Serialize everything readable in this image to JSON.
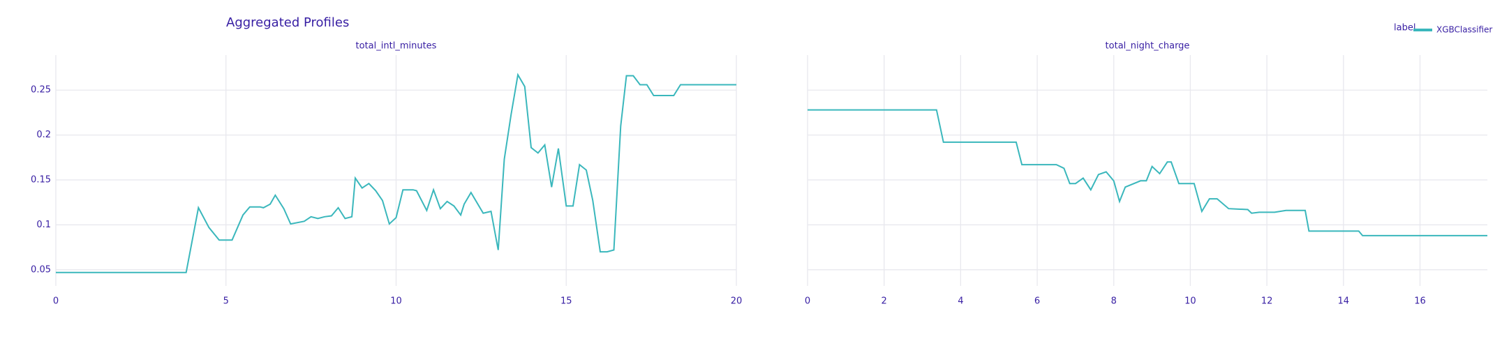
{
  "title": "Aggregated Profiles",
  "legend": {
    "title": "label"
  },
  "chart_data": [
    {
      "type": "line",
      "title": "total_intl_minutes",
      "x": [
        0,
        3.83,
        4.19,
        4.5,
        4.8,
        5.18,
        5.5,
        5.7,
        6.0,
        6.1,
        6.3,
        6.45,
        6.7,
        6.9,
        7.3,
        7.5,
        7.7,
        7.9,
        8.1,
        8.3,
        8.5,
        8.7,
        8.8,
        9.0,
        9.2,
        9.4,
        9.6,
        9.8,
        10.0,
        10.2,
        10.5,
        10.6,
        10.9,
        11.1,
        11.3,
        11.5,
        11.7,
        11.9,
        12.0,
        12.2,
        12.56,
        12.79,
        13.0,
        13.18,
        13.38,
        13.58,
        13.78,
        13.97,
        14.17,
        14.37,
        14.57,
        14.77,
        15.0,
        15.2,
        15.39,
        15.59,
        15.78,
        16.0,
        16.2,
        16.4,
        16.6,
        16.77,
        16.97,
        17.17,
        17.37,
        17.57,
        18.16,
        18.36,
        20
      ],
      "series": [
        {
          "name": "XGBClassifier",
          "color": "#3ab7bc",
          "values": [
            0.047,
            0.047,
            0.119,
            0.097,
            0.083,
            0.083,
            0.111,
            0.12,
            0.12,
            0.119,
            0.123,
            0.133,
            0.118,
            0.101,
            0.104,
            0.109,
            0.107,
            0.109,
            0.11,
            0.119,
            0.107,
            0.109,
            0.152,
            0.141,
            0.146,
            0.138,
            0.127,
            0.101,
            0.108,
            0.139,
            0.139,
            0.138,
            0.116,
            0.139,
            0.118,
            0.126,
            0.121,
            0.111,
            0.123,
            0.136,
            0.113,
            0.115,
            0.072,
            0.173,
            0.223,
            0.267,
            0.254,
            0.186,
            0.18,
            0.189,
            0.142,
            0.185,
            0.121,
            0.121,
            0.167,
            0.161,
            0.127,
            0.07,
            0.07,
            0.072,
            0.21,
            0.266,
            0.266,
            0.256,
            0.256,
            0.244,
            0.244,
            0.256,
            0.256
          ]
        }
      ],
      "xlim": [
        0,
        20
      ],
      "ylim": [
        0.032,
        0.289
      ],
      "xticks": [
        0,
        5,
        10,
        15,
        20
      ],
      "yticks": [
        0.05,
        0.1,
        0.15,
        0.2,
        0.25
      ],
      "grid": true
    },
    {
      "type": "line",
      "title": "total_night_charge",
      "x": [
        0,
        3.37,
        3.55,
        5.45,
        5.6,
        6.5,
        6.7,
        6.85,
        7.0,
        7.2,
        7.4,
        7.6,
        7.8,
        8.0,
        8.15,
        8.3,
        8.7,
        8.85,
        9.0,
        9.2,
        9.4,
        9.5,
        9.7,
        10.1,
        10.3,
        10.5,
        10.7,
        11.0,
        11.5,
        11.6,
        11.8,
        12.2,
        12.5,
        13.0,
        13.1,
        14.4,
        14.5,
        17.76
      ],
      "series": [
        {
          "name": "XGBClassifier",
          "color": "#3ab7bc",
          "values": [
            0.228,
            0.228,
            0.192,
            0.192,
            0.167,
            0.167,
            0.163,
            0.146,
            0.146,
            0.152,
            0.139,
            0.156,
            0.159,
            0.149,
            0.126,
            0.142,
            0.149,
            0.149,
            0.165,
            0.157,
            0.17,
            0.17,
            0.146,
            0.146,
            0.115,
            0.129,
            0.129,
            0.118,
            0.117,
            0.113,
            0.114,
            0.114,
            0.116,
            0.116,
            0.093,
            0.093,
            0.088,
            0.088
          ]
        }
      ],
      "xlim": [
        0,
        17.76
      ],
      "ylim": [
        0.032,
        0.289
      ],
      "xticks": [
        0,
        2,
        4,
        6,
        8,
        10,
        12,
        14,
        16
      ],
      "yticks": [
        0.05,
        0.1,
        0.15,
        0.2,
        0.25
      ],
      "grid": true
    }
  ]
}
